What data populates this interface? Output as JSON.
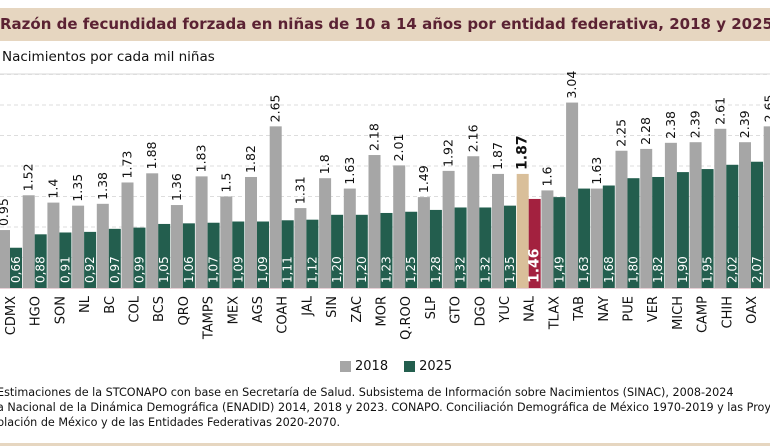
{
  "header": {
    "title": "Razón de fecundidad forzada en niñas de 10 a 14 años por entidad federativa, 2018 y 2025",
    "unit_label": "Nacimientos por cada mil niñas"
  },
  "legend": [
    {
      "label": "2018",
      "color": "#a6a6a6"
    },
    {
      "label": "2025",
      "color": "#235e4e"
    }
  ],
  "footer": {
    "lines": [
      "Estimaciones de la STCONAPO con base en Secretaría de Salud. Subsistema de Información sobre Nacimientos (SINAC), 2008-2024",
      "a Nacional de la Dinámica Demográfica (ENADID) 2014, 2018 y 2023. CONAPO. Conciliación Demográfica de México 1970-2019 y las Proy",
      "blación de México y de las Entidades Federativas 2020-2070."
    ]
  },
  "colors": {
    "series_2018": "#a6a6a6",
    "series_2025": "#235e4e",
    "national_2018": "#d9bf9a",
    "national_2025": "#a3213f",
    "title_bg": "#e6d6c0",
    "title_text": "#5b2233"
  },
  "chart_data": {
    "type": "bar",
    "title": "Razón de fecundidad forzada en niñas de 10 a 14 años por entidad federativa, 2018 y 2025",
    "ylabel": "Nacimientos por cada mil niñas",
    "xlabel": "",
    "ylim": [
      0,
      3.5
    ],
    "grid": true,
    "legend_position": "bottom-center",
    "highlight_category": "NAL",
    "categories": [
      "CDMX",
      "HGO",
      "SON",
      "NL",
      "BC",
      "COL",
      "BCS",
      "QRO",
      "TAMPS",
      "MEX",
      "AGS",
      "COAH",
      "JAL",
      "SIN",
      "ZAC",
      "MOR",
      "Q.ROO",
      "SLP",
      "GTO",
      "DGO",
      "YUC",
      "NAL",
      "TLAX",
      "TAB",
      "NAY",
      "PUE",
      "VER",
      "MICH",
      "CAMP",
      "CHIH",
      "OAX",
      ""
    ],
    "series": [
      {
        "name": "2018",
        "values": [
          0.95,
          1.52,
          1.4,
          1.35,
          1.38,
          1.73,
          1.88,
          1.36,
          1.83,
          1.5,
          1.82,
          2.65,
          1.31,
          1.8,
          1.63,
          2.18,
          2.01,
          1.49,
          1.92,
          2.16,
          1.87,
          1.87,
          1.6,
          3.04,
          1.63,
          2.25,
          2.28,
          2.38,
          2.39,
          2.61,
          2.39,
          2.65
        ],
        "labels": [
          "0.95",
          "1.52",
          "1.4",
          "1.35",
          "1.38",
          "1.73",
          "1.88",
          "1.36",
          "1.83",
          "1.5",
          "1.82",
          "2.65",
          "1.31",
          "1.8",
          "1.63",
          "2.18",
          "2.01",
          "1.49",
          "1.92",
          "2.16",
          "1.87",
          "1.87",
          "1.6",
          "3.04",
          "1.63",
          "2.25",
          "2.28",
          "2.38",
          "2.39",
          "2.61",
          "2.39",
          "2.65"
        ]
      },
      {
        "name": "2025",
        "values": [
          0.66,
          0.88,
          0.91,
          0.92,
          0.97,
          0.99,
          1.05,
          1.06,
          1.07,
          1.09,
          1.09,
          1.11,
          1.12,
          1.2,
          1.2,
          1.23,
          1.25,
          1.28,
          1.32,
          1.32,
          1.35,
          1.46,
          1.49,
          1.63,
          1.68,
          1.8,
          1.82,
          1.9,
          1.95,
          2.02,
          2.07,
          null
        ],
        "labels": [
          "0,66",
          "0,88",
          "0,91",
          "0,92",
          "0,97",
          "0,99",
          "1,05",
          "1,06",
          "1,07",
          "1,09",
          "1,09",
          "1,11",
          "1,12",
          "1,20",
          "1,20",
          "1,23",
          "1,25",
          "1,28",
          "1,32",
          "1,32",
          "1,35",
          "1.46",
          "1,49",
          "1,63",
          "1,68",
          "1,80",
          "1,82",
          "1,90",
          "1,95",
          "2,02",
          "2,07",
          ""
        ]
      }
    ]
  }
}
